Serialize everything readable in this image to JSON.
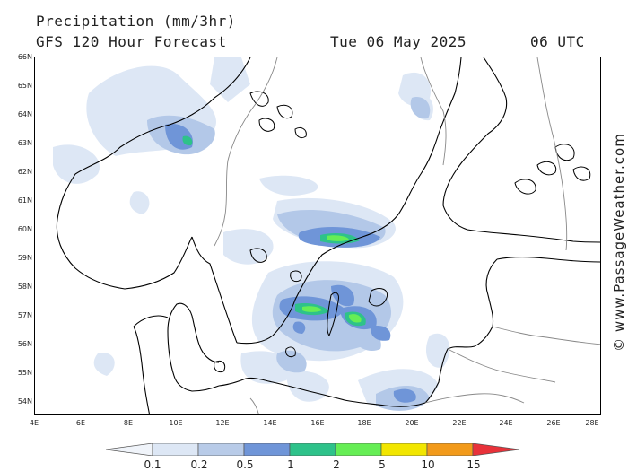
{
  "header": {
    "title": "Precipitation (mm/3hr)",
    "subtitle": "GFS 120 Hour Forecast",
    "valid_date": "Tue 06 May 2025",
    "valid_time": "06 UTC"
  },
  "lat_labels": [
    "66N",
    "65N",
    "64N",
    "63N",
    "62N",
    "61N",
    "60N",
    "59N",
    "58N",
    "57N",
    "56N",
    "55N",
    "54N"
  ],
  "lon_labels": [
    "4E",
    "6E",
    "8E",
    "10E",
    "12E",
    "14E",
    "16E",
    "18E",
    "20E",
    "22E",
    "24E",
    "26E",
    "28E"
  ],
  "watermark": "© www.PassageWeather.com",
  "colorbar": {
    "labels": [
      "0.1",
      "0.2",
      "0.5",
      "1",
      "2",
      "5",
      "10",
      "15"
    ],
    "colors": [
      "#f0f4fa",
      "#dde7f5",
      "#b8cbe8",
      "#6f95d8",
      "#2ec28a",
      "#66ee55",
      "#f2e600",
      "#f29a1a",
      "#e8323a"
    ]
  },
  "colors": {
    "precip_very_light": "#dde7f5",
    "precip_light": "#b3c8e8",
    "precip_moderate": "#6f95d8",
    "precip_teal": "#2ec28a",
    "precip_green": "#66ee55",
    "coastline": "#000000",
    "border": "#888888"
  }
}
